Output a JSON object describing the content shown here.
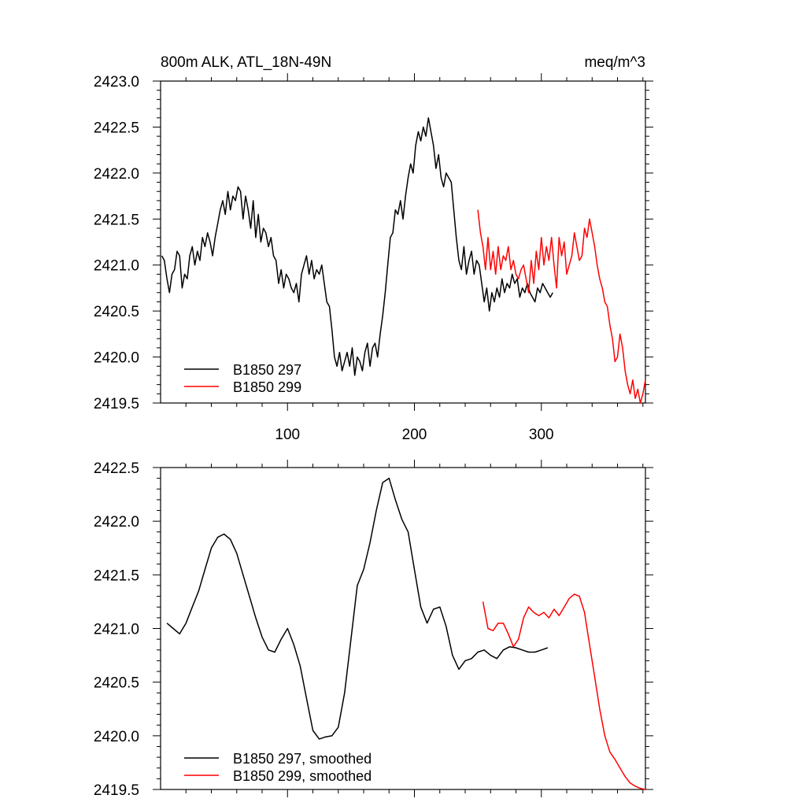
{
  "chart_data": [
    {
      "type": "line",
      "title": "800m ALK, ATL_18N-49N",
      "units": "meq/m^3",
      "xlim": [
        0,
        382
      ],
      "ylim": [
        2419.5,
        2423.0
      ],
      "xticks": [
        100,
        200,
        300
      ],
      "xtick_labels": [
        "100",
        "200",
        "300"
      ],
      "yticks": [
        2419.5,
        2420.0,
        2420.5,
        2421.0,
        2421.5,
        2422.0,
        2422.5,
        2423.0
      ],
      "ytick_labels": [
        "2419.5",
        "2420.0",
        "2420.5",
        "2421.0",
        "2421.5",
        "2422.0",
        "2422.5",
        "2423.0"
      ],
      "legend_position": "lower-left",
      "grid": false,
      "series": [
        {
          "name": "B1850 297",
          "color": "#000000",
          "x": [
            1,
            3,
            5,
            7,
            9,
            11,
            13,
            15,
            17,
            19,
            21,
            23,
            25,
            27,
            29,
            31,
            33,
            35,
            37,
            39,
            41,
            43,
            45,
            47,
            49,
            51,
            53,
            55,
            57,
            59,
            61,
            63,
            65,
            67,
            69,
            71,
            73,
            75,
            77,
            79,
            81,
            83,
            85,
            87,
            89,
            91,
            93,
            95,
            97,
            99,
            101,
            103,
            105,
            107,
            109,
            111,
            113,
            115,
            117,
            119,
            121,
            123,
            125,
            127,
            129,
            131,
            133,
            135,
            137,
            139,
            141,
            143,
            145,
            147,
            149,
            151,
            153,
            155,
            157,
            159,
            161,
            163,
            165,
            167,
            169,
            171,
            173,
            175,
            177,
            179,
            181,
            183,
            185,
            187,
            189,
            191,
            193,
            195,
            197,
            199,
            201,
            203,
            205,
            207,
            209,
            211,
            213,
            215,
            217,
            219,
            221,
            223,
            225,
            227,
            229,
            231,
            233,
            235,
            237,
            239,
            241,
            243,
            245,
            247,
            249,
            251,
            253,
            255,
            257,
            259,
            261,
            263,
            265,
            267,
            269,
            271,
            273,
            275,
            277,
            279,
            281,
            283,
            285,
            287,
            289,
            291,
            293,
            295,
            297,
            299,
            301,
            303,
            305,
            307,
            309
          ],
          "y": [
            2421.1,
            2421.05,
            2420.85,
            2420.7,
            2420.9,
            2420.95,
            2421.15,
            2421.1,
            2420.75,
            2420.9,
            2420.85,
            2421.1,
            2421.2,
            2421.0,
            2421.15,
            2421.05,
            2421.3,
            2421.2,
            2421.35,
            2421.25,
            2421.1,
            2421.3,
            2421.45,
            2421.6,
            2421.7,
            2421.55,
            2421.8,
            2421.6,
            2421.75,
            2421.7,
            2421.85,
            2421.8,
            2421.5,
            2421.75,
            2421.6,
            2421.4,
            2421.7,
            2421.3,
            2421.55,
            2421.25,
            2421.4,
            2421.35,
            2421.2,
            2421.3,
            2421.1,
            2421.05,
            2420.8,
            2420.95,
            2420.75,
            2420.9,
            2420.85,
            2420.75,
            2420.7,
            2420.8,
            2420.6,
            2420.9,
            2421.0,
            2421.1,
            2420.9,
            2421.05,
            2420.85,
            2420.95,
            2420.9,
            2421.0,
            2420.8,
            2420.6,
            2420.55,
            2420.3,
            2420.0,
            2419.9,
            2420.05,
            2419.85,
            2419.95,
            2420.05,
            2419.9,
            2420.1,
            2419.8,
            2420.0,
            2419.95,
            2419.85,
            2420.05,
            2420.15,
            2419.9,
            2420.1,
            2420.15,
            2420.0,
            2420.25,
            2420.45,
            2420.7,
            2421.0,
            2421.3,
            2421.35,
            2421.6,
            2421.55,
            2421.7,
            2421.5,
            2421.75,
            2421.95,
            2422.1,
            2422.0,
            2422.3,
            2422.45,
            2422.35,
            2422.5,
            2422.4,
            2422.6,
            2422.45,
            2422.3,
            2422.05,
            2422.2,
            2421.95,
            2421.85,
            2422.0,
            2421.95,
            2421.9,
            2421.6,
            2421.3,
            2421.05,
            2420.95,
            2421.2,
            2420.9,
            2421.05,
            2421.15,
            2420.9,
            2421.05,
            2421.0,
            2420.8,
            2420.6,
            2420.75,
            2420.5,
            2420.7,
            2420.6,
            2420.75,
            2420.65,
            2420.85,
            2420.7,
            2420.8,
            2420.75,
            2420.9,
            2420.8,
            2420.85,
            2420.65,
            2420.75,
            2420.7,
            2420.8,
            2420.7,
            2420.65,
            2420.6,
            2420.75,
            2420.7,
            2420.8,
            2420.75,
            2420.7,
            2420.65,
            2420.7
          ]
        },
        {
          "name": "B1850 299",
          "color": "#ff0000",
          "x": [
            250,
            252,
            254,
            256,
            258,
            260,
            262,
            264,
            266,
            268,
            270,
            272,
            274,
            276,
            278,
            280,
            282,
            284,
            286,
            288,
            290,
            292,
            294,
            296,
            298,
            300,
            302,
            304,
            306,
            308,
            310,
            312,
            314,
            316,
            318,
            320,
            322,
            324,
            326,
            328,
            330,
            332,
            334,
            336,
            338,
            340,
            342,
            344,
            346,
            348,
            350,
            352,
            354,
            356,
            358,
            360,
            362,
            364,
            366,
            368,
            370,
            372,
            374,
            376,
            378,
            380,
            382
          ],
          "y": [
            2421.6,
            2421.35,
            2421.2,
            2420.95,
            2421.3,
            2420.95,
            2421.15,
            2420.9,
            2421.2,
            2420.95,
            2421.1,
            2421.05,
            2421.2,
            2420.95,
            2421.05,
            2420.9,
            2420.85,
            2420.95,
            2421.0,
            2420.85,
            2420.7,
            2421.05,
            2420.8,
            2421.15,
            2420.95,
            2421.3,
            2421.0,
            2421.2,
            2421.05,
            2421.3,
            2421.0,
            2420.75,
            2421.3,
            2421.1,
            2421.25,
            2420.9,
            2421.0,
            2421.1,
            2421.35,
            2421.2,
            2421.05,
            2421.1,
            2421.4,
            2421.3,
            2421.5,
            2421.35,
            2421.2,
            2421.0,
            2420.85,
            2420.75,
            2420.6,
            2420.55,
            2420.35,
            2420.2,
            2419.95,
            2420.0,
            2420.25,
            2420.1,
            2419.85,
            2419.7,
            2419.6,
            2419.75,
            2419.55,
            2419.65,
            2419.5,
            2419.6,
            2419.75
          ]
        }
      ]
    },
    {
      "type": "line",
      "title": "",
      "xlim": [
        0,
        382
      ],
      "ylim": [
        2419.5,
        2422.5
      ],
      "xticks": [
        100,
        200,
        300
      ],
      "yticks": [
        2419.5,
        2420.0,
        2420.5,
        2421.0,
        2421.5,
        2422.0,
        2422.5
      ],
      "ytick_labels": [
        "2419.5",
        "2420.0",
        "2420.5",
        "2421.0",
        "2421.5",
        "2422.0",
        "2422.5"
      ],
      "legend_position": "lower-left",
      "grid": false,
      "series": [
        {
          "name": "B1850 297, smoothed",
          "color": "#000000",
          "x": [
            5,
            10,
            15,
            20,
            25,
            30,
            35,
            40,
            45,
            50,
            55,
            60,
            65,
            70,
            75,
            80,
            85,
            90,
            95,
            100,
            105,
            110,
            115,
            120,
            125,
            130,
            135,
            140,
            145,
            150,
            155,
            160,
            165,
            170,
            175,
            180,
            185,
            190,
            195,
            200,
            205,
            210,
            215,
            220,
            225,
            230,
            235,
            240,
            245,
            250,
            255,
            260,
            265,
            270,
            275,
            280,
            285,
            290,
            295,
            300,
            305
          ],
          "y": [
            2421.05,
            2421.0,
            2420.95,
            2421.05,
            2421.2,
            2421.35,
            2421.55,
            2421.75,
            2421.85,
            2421.88,
            2421.83,
            2421.7,
            2421.5,
            2421.3,
            2421.1,
            2420.92,
            2420.8,
            2420.78,
            2420.9,
            2421.0,
            2420.85,
            2420.65,
            2420.35,
            2420.05,
            2419.97,
            2419.99,
            2420.0,
            2420.08,
            2420.4,
            2420.9,
            2421.4,
            2421.55,
            2421.8,
            2422.1,
            2422.36,
            2422.4,
            2422.2,
            2422.02,
            2421.9,
            2421.55,
            2421.2,
            2421.05,
            2421.18,
            2421.2,
            2421.02,
            2420.75,
            2420.62,
            2420.7,
            2420.72,
            2420.78,
            2420.8,
            2420.75,
            2420.72,
            2420.8,
            2420.83,
            2420.82,
            2420.8,
            2420.78,
            2420.78,
            2420.8,
            2420.82
          ]
        },
        {
          "name": "B1850 299, smoothed",
          "color": "#ff0000",
          "x": [
            254,
            258,
            262,
            266,
            270,
            274,
            278,
            282,
            286,
            290,
            294,
            298,
            302,
            306,
            310,
            314,
            318,
            322,
            326,
            330,
            334,
            338,
            342,
            346,
            350,
            354,
            358,
            362,
            366,
            370,
            374,
            378,
            382
          ],
          "y": [
            2421.25,
            2421.0,
            2420.98,
            2421.05,
            2421.05,
            2420.95,
            2420.83,
            2420.9,
            2421.1,
            2421.2,
            2421.15,
            2421.12,
            2421.15,
            2421.1,
            2421.18,
            2421.12,
            2421.2,
            2421.28,
            2421.32,
            2421.3,
            2421.15,
            2420.85,
            2420.55,
            2420.25,
            2420.0,
            2419.85,
            2419.78,
            2419.7,
            2419.62,
            2419.56,
            2419.53,
            2419.51,
            2419.5
          ]
        }
      ]
    }
  ]
}
